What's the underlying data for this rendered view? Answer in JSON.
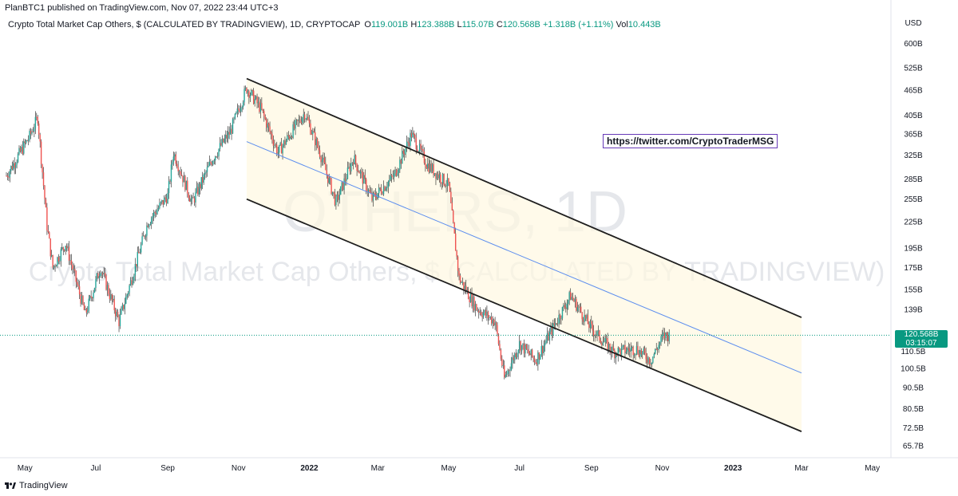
{
  "header": {
    "published": "PlanBTC1 published on TradingView.com, Nov 07, 2022 23:44 UTC+3"
  },
  "legend": {
    "title": "Crypto Total Market Cap Others, $ (CALCULATED BY TRADINGVIEW), 1D, CRYPTOCAP",
    "o_label": "O",
    "o_value": "119.001B",
    "h_label": "H",
    "h_value": "123.388B",
    "l_label": "L",
    "l_value": "115.07B",
    "c_label": "C",
    "c_value": "120.568B",
    "change": "+1.318B (+1.11%)",
    "vol_label": "Vol",
    "vol_value": "10.443B"
  },
  "watermark": {
    "symbol": "OTHERS, 1D",
    "name": "Crypto Total Market Cap Others, $ (CALCULATED BY TRADINGVIEW)"
  },
  "annotation": {
    "link": "https://twitter.com/CryptoTraderMSG"
  },
  "price_tag": {
    "price": "120.568B",
    "countdown": "03:15:07"
  },
  "footer": {
    "brand": "TradingView"
  },
  "colors": {
    "up": "#26a69a",
    "down": "#ef5350",
    "wick": "#1e1e1e",
    "channel_line": "#1e1e1e",
    "mid_line": "#5b8def",
    "channel_fill": "#fff8e1",
    "price_line": "#089981"
  },
  "chart_data": {
    "type": "candlestick",
    "title": "Crypto Total Market Cap Others, $ (CALCULATED BY TRADINGVIEW), 1D, CRYPTOCAP",
    "scale": "log",
    "y_unit": "USD",
    "y_ticks": [
      "600B",
      "525B",
      "465B",
      "405B",
      "365B",
      "325B",
      "285B",
      "255B",
      "225B",
      "195B",
      "175B",
      "155B",
      "139B",
      "110.5B",
      "100.5B",
      "90.5B",
      "80.5B",
      "72.5B",
      "65.7B"
    ],
    "y_tick_values": [
      600,
      525,
      465,
      405,
      365,
      325,
      285,
      255,
      225,
      195,
      175,
      155,
      139,
      110.5,
      100.5,
      90.5,
      80.5,
      72.5,
      65.7
    ],
    "x_ticks": [
      {
        "label": "May",
        "date": "2021-05-01",
        "bold": false
      },
      {
        "label": "Jul",
        "date": "2021-07-01",
        "bold": false
      },
      {
        "label": "Sep",
        "date": "2021-09-01",
        "bold": false
      },
      {
        "label": "Nov",
        "date": "2021-11-01",
        "bold": false
      },
      {
        "label": "2022",
        "date": "2022-01-01",
        "bold": true
      },
      {
        "label": "Mar",
        "date": "2022-03-01",
        "bold": false
      },
      {
        "label": "May",
        "date": "2022-05-01",
        "bold": false
      },
      {
        "label": "Jul",
        "date": "2022-07-01",
        "bold": false
      },
      {
        "label": "Sep",
        "date": "2022-09-01",
        "bold": false
      },
      {
        "label": "Nov",
        "date": "2022-11-01",
        "bold": false
      },
      {
        "label": "2023",
        "date": "2023-01-01",
        "bold": true
      },
      {
        "label": "Mar",
        "date": "2023-03-01",
        "bold": false
      },
      {
        "label": "May",
        "date": "2023-05-01",
        "bold": false
      }
    ],
    "last_close": 120.568,
    "price_path": [
      [
        "2021-04-15",
        290
      ],
      [
        "2021-05-05",
        360
      ],
      [
        "2021-05-12",
        400
      ],
      [
        "2021-05-20",
        220
      ],
      [
        "2021-05-25",
        175
      ],
      [
        "2021-06-05",
        200
      ],
      [
        "2021-06-22",
        135
      ],
      [
        "2021-07-05",
        175
      ],
      [
        "2021-07-21",
        130
      ],
      [
        "2021-08-01",
        165
      ],
      [
        "2021-08-15",
        225
      ],
      [
        "2021-09-01",
        260
      ],
      [
        "2021-09-06",
        330
      ],
      [
        "2021-09-22",
        250
      ],
      [
        "2021-10-10",
        320
      ],
      [
        "2021-10-25",
        370
      ],
      [
        "2021-11-08",
        470
      ],
      [
        "2021-11-20",
        420
      ],
      [
        "2021-12-05",
        330
      ],
      [
        "2021-12-20",
        380
      ],
      [
        "2021-12-28",
        410
      ],
      [
        "2022-01-10",
        330
      ],
      [
        "2022-01-24",
        250
      ],
      [
        "2022-02-08",
        320
      ],
      [
        "2022-02-24",
        255
      ],
      [
        "2022-03-15",
        290
      ],
      [
        "2022-03-30",
        365
      ],
      [
        "2022-04-12",
        310
      ],
      [
        "2022-05-01",
        275
      ],
      [
        "2022-05-10",
        165
      ],
      [
        "2022-05-25",
        140
      ],
      [
        "2022-06-10",
        130
      ],
      [
        "2022-06-18",
        95
      ],
      [
        "2022-07-01",
        115
      ],
      [
        "2022-07-15",
        105
      ],
      [
        "2022-08-05",
        135
      ],
      [
        "2022-08-14",
        150
      ],
      [
        "2022-09-01",
        125
      ],
      [
        "2022-09-20",
        110
      ],
      [
        "2022-10-10",
        112
      ],
      [
        "2022-10-22",
        105
      ],
      [
        "2022-11-02",
        120
      ],
      [
        "2022-11-07",
        120.568
      ]
    ],
    "channel": {
      "upper": [
        [
          "2021-11-08",
          495
        ],
        [
          "2023-03-01",
          133
        ]
      ],
      "middle": [
        [
          "2021-11-08",
          350
        ],
        [
          "2023-03-01",
          98
        ]
      ],
      "lower": [
        [
          "2021-11-08",
          255
        ],
        [
          "2023-03-01",
          71
        ]
      ]
    }
  }
}
